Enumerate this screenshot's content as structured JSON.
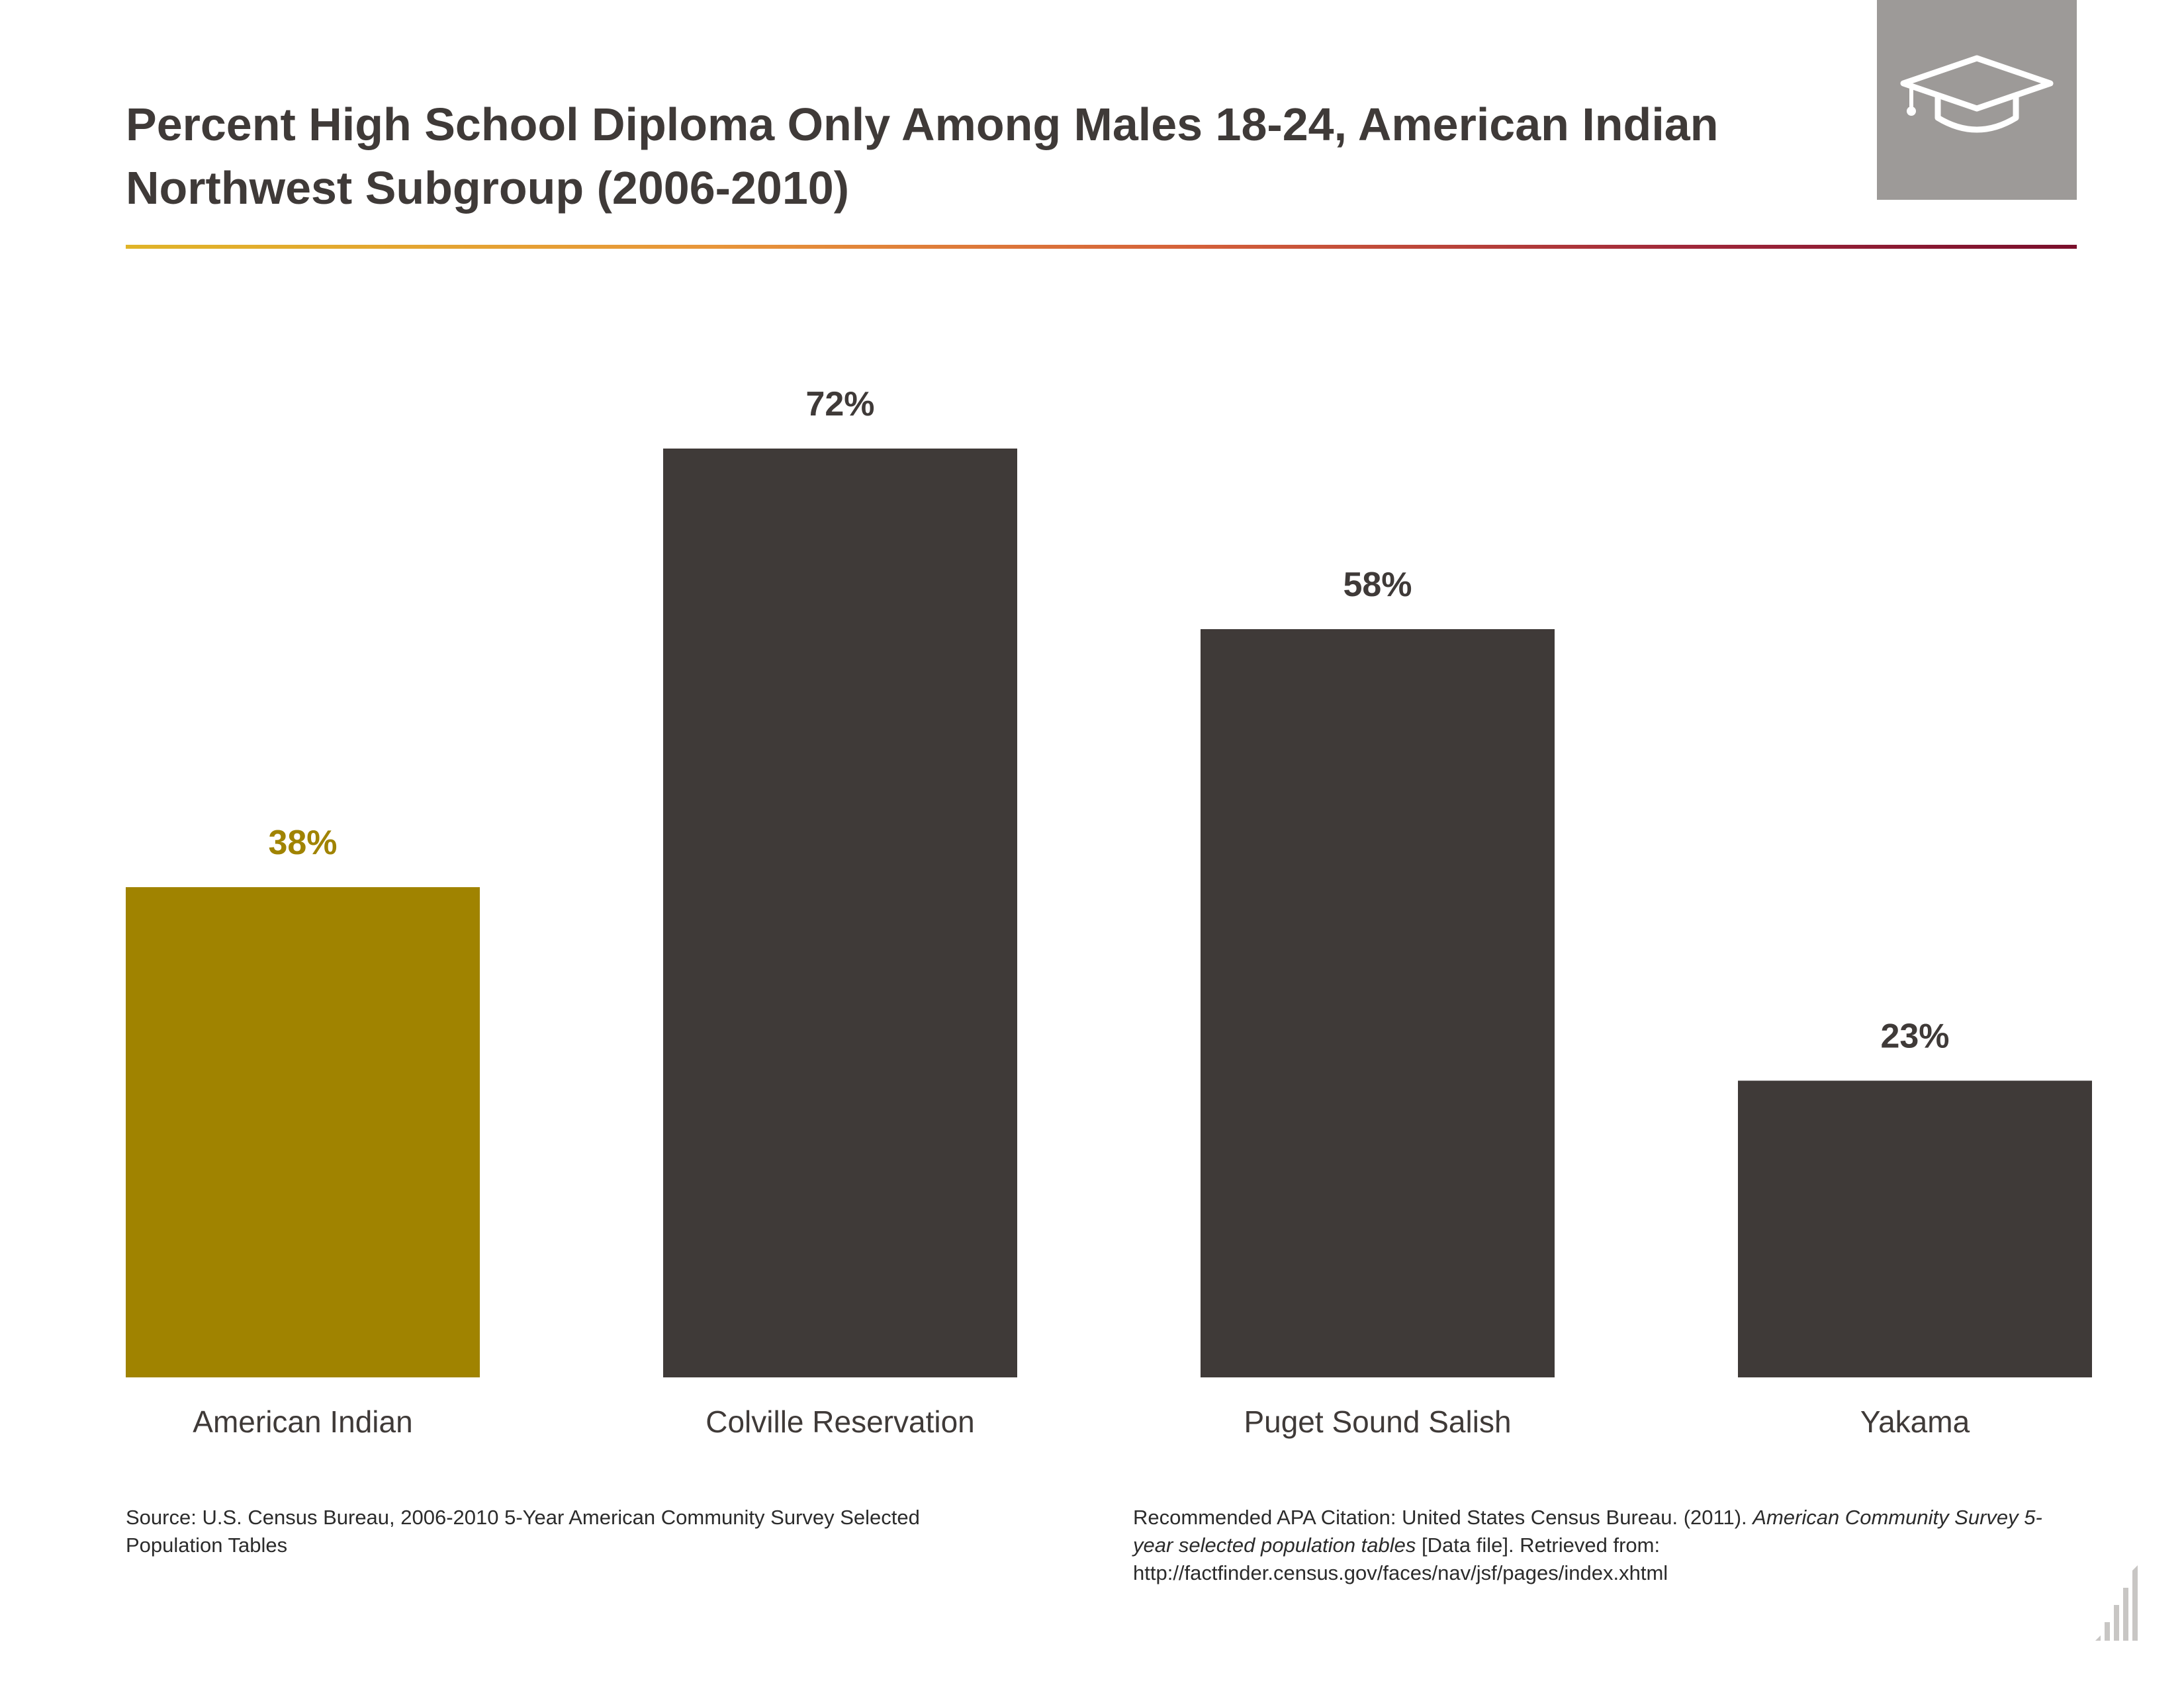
{
  "header": {
    "title_line1": "Percent High School Diploma Only Among Males 18-24, American Indian",
    "title_line2": "Northwest Subgroup (2006-2010)",
    "icon": "graduation-cap-icon"
  },
  "chart_data": {
    "type": "bar",
    "title": "Percent High School Diploma Only Among Males 18-24, American Indian Northwest Subgroup (2006-2010)",
    "categories": [
      "American Indian",
      "Colville Reservation",
      "Puget Sound Salish",
      "Yakama"
    ],
    "values": [
      38,
      72,
      58,
      23
    ],
    "value_labels": [
      "38%",
      "72%",
      "58%",
      "23%"
    ],
    "ylim": [
      0,
      100
    ],
    "grid": false,
    "legend": "none",
    "colors": [
      "#a08300",
      "#3f3a38",
      "#3f3a38",
      "#3f3a38"
    ]
  },
  "footer": {
    "source": "Source: U.S. Census Bureau, 2006-2010 5-Year American Community Survey Selected Population Tables",
    "citation_prefix": "Recommended APA Citation: United States Census Bureau. (2011). ",
    "citation_italic": "American Community Survey 5-year selected population tables",
    "citation_suffix": " [Data file]. Retrieved from: http://factfinder.census.gov/faces/nav/jsf/pages/index.xhtml"
  },
  "colors": {
    "highlight": "#a08300",
    "bar": "#3f3a38",
    "icon_box": "#9d9a98"
  }
}
